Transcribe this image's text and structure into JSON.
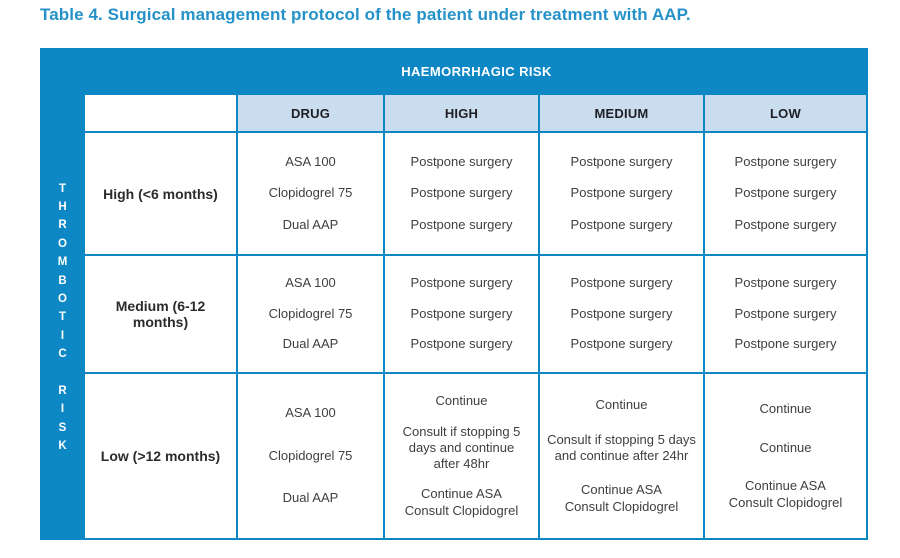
{
  "page_title": "Table 4. Surgical management protocol of the patient under treatment with AAP.",
  "table": {
    "haemorrhagic_axis": "HAEMORRHAGIC RISK",
    "thrombotic_axis": "THROMBOTIC RISK",
    "columns": [
      "DRUG",
      "HIGH",
      "MEDIUM",
      "LOW"
    ],
    "groups": [
      {
        "label": "High (<6 months)",
        "drugs": [
          "ASA 100",
          "Clopidogrel 75",
          "Dual AAP"
        ],
        "high": [
          "Postpone surgery",
          "Postpone surgery",
          "Postpone surgery"
        ],
        "medium": [
          "Postpone surgery",
          "Postpone surgery",
          "Postpone surgery"
        ],
        "low": [
          "Postpone surgery",
          "Postpone surgery",
          "Postpone surgery"
        ]
      },
      {
        "label": "Medium (6-12 months)",
        "drugs": [
          "ASA 100",
          "Clopidogrel 75",
          "Dual AAP"
        ],
        "high": [
          "Postpone surgery",
          "Postpone surgery",
          "Postpone surgery"
        ],
        "medium": [
          "Postpone surgery",
          "Postpone surgery",
          "Postpone surgery"
        ],
        "low": [
          "Postpone surgery",
          "Postpone surgery",
          "Postpone surgery"
        ]
      },
      {
        "label": "Low (>12 months)",
        "drugs": [
          "ASA 100",
          "Clopidogrel 75",
          "Dual AAP"
        ],
        "high": [
          "Continue",
          "Consult if stopping 5\ndays and continue\nafter 48hr",
          "Continue ASA\nConsult Clopidogrel"
        ],
        "medium": [
          "Continue",
          "Consult if stopping 5 days\nand continue after 24hr",
          "Continue ASA\nConsult Clopidogrel"
        ],
        "low": [
          "Continue",
          "Continue",
          "Continue ASA\nConsult Clopidogrel"
        ]
      }
    ]
  },
  "colors": {
    "table_blue": "#0e87c5",
    "header_light_blue": "#c9ddef",
    "title_blue": "#2492c9",
    "body_text": "#3f3f3f"
  }
}
